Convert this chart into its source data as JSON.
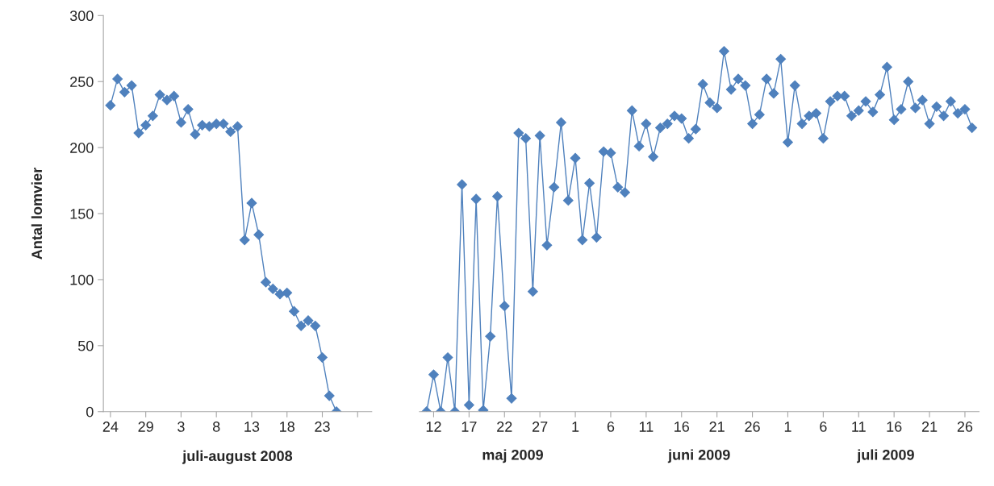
{
  "chart_data": [
    {
      "type": "line",
      "xlabel": "juli-august 2008",
      "ylabel": "Antal lomvier",
      "marker": "diamond",
      "grid": false,
      "x": [
        "2008-07-24",
        "2008-07-25",
        "2008-07-26",
        "2008-07-27",
        "2008-07-28",
        "2008-07-29",
        "2008-07-30",
        "2008-07-31",
        "2008-08-01",
        "2008-08-02",
        "2008-08-03",
        "2008-08-04",
        "2008-08-05",
        "2008-08-06",
        "2008-08-07",
        "2008-08-08",
        "2008-08-09",
        "2008-08-10",
        "2008-08-11",
        "2008-08-12",
        "2008-08-13",
        "2008-08-14",
        "2008-08-15",
        "2008-08-16",
        "2008-08-17",
        "2008-08-18",
        "2008-08-19",
        "2008-08-20",
        "2008-08-21",
        "2008-08-22",
        "2008-08-23",
        "2008-08-24",
        "2008-08-25"
      ],
      "series": [
        {
          "color": "#4f81bd",
          "values": [
            232,
            252,
            242,
            247,
            211,
            217,
            224,
            240,
            236,
            239,
            219,
            229,
            210,
            217,
            216,
            218,
            218,
            212,
            216,
            130,
            158,
            134,
            98,
            93,
            89,
            90,
            76,
            65,
            69,
            65,
            41,
            12,
            0
          ]
        }
      ],
      "xlim": [
        "2008-07-23",
        "2008-08-30"
      ],
      "xticks": [
        {
          "value": "2008-07-24",
          "label": "24"
        },
        {
          "value": "2008-07-29",
          "label": "29"
        },
        {
          "value": "2008-08-03",
          "label": "3"
        },
        {
          "value": "2008-08-08",
          "label": "8"
        },
        {
          "value": "2008-08-13",
          "label": "13"
        },
        {
          "value": "2008-08-18",
          "label": "18"
        },
        {
          "value": "2008-08-23",
          "label": "23"
        },
        {
          "value": "2008-08-28",
          "label": null
        }
      ],
      "ylim": [
        0,
        300
      ],
      "yticks": [
        0,
        50,
        100,
        150,
        200,
        250,
        300
      ]
    },
    {
      "type": "line",
      "marker": "diamond",
      "grid": false,
      "tick_labels": "x",
      "annotations": [
        "maj 2009",
        "juni 2009",
        "juli 2009"
      ],
      "x": [
        "2009-05-11",
        "2009-05-12",
        "2009-05-13",
        "2009-05-14",
        "2009-05-15",
        "2009-05-16",
        "2009-05-17",
        "2009-05-18",
        "2009-05-19",
        "2009-05-20",
        "2009-05-21",
        "2009-05-22",
        "2009-05-23",
        "2009-05-24",
        "2009-05-25",
        "2009-05-26",
        "2009-05-27",
        "2009-05-28",
        "2009-05-29",
        "2009-05-30",
        "2009-05-31",
        "2009-06-01",
        "2009-06-02",
        "2009-06-03",
        "2009-06-04",
        "2009-06-05",
        "2009-06-06",
        "2009-06-07",
        "2009-06-08",
        "2009-06-09",
        "2009-06-10",
        "2009-06-11",
        "2009-06-12",
        "2009-06-13",
        "2009-06-14",
        "2009-06-15",
        "2009-06-16",
        "2009-06-17",
        "2009-06-18",
        "2009-06-19",
        "2009-06-20",
        "2009-06-21",
        "2009-06-22",
        "2009-06-23",
        "2009-06-24",
        "2009-06-25",
        "2009-06-26",
        "2009-06-27",
        "2009-06-28",
        "2009-06-29",
        "2009-06-30",
        "2009-07-01",
        "2009-07-02",
        "2009-07-03",
        "2009-07-04",
        "2009-07-05",
        "2009-07-06",
        "2009-07-07",
        "2009-07-08",
        "2009-07-09",
        "2009-07-10",
        "2009-07-11",
        "2009-07-12",
        "2009-07-13",
        "2009-07-14",
        "2009-07-15",
        "2009-07-16",
        "2009-07-17",
        "2009-07-18",
        "2009-07-19",
        "2009-07-20",
        "2009-07-21",
        "2009-07-22",
        "2009-07-23",
        "2009-07-24",
        "2009-07-25",
        "2009-07-26",
        "2009-07-27"
      ],
      "series": [
        {
          "color": "#4f81bd",
          "values": [
            0,
            28,
            0,
            41,
            0,
            172,
            5,
            161,
            1,
            57,
            163,
            80,
            10,
            211,
            207,
            91,
            209,
            126,
            170,
            219,
            160,
            192,
            130,
            173,
            132,
            197,
            196,
            170,
            166,
            228,
            201,
            218,
            193,
            215,
            218,
            224,
            222,
            207,
            214,
            248,
            234,
            230,
            273,
            244,
            252,
            247,
            218,
            225,
            252,
            241,
            267,
            204,
            247,
            218,
            224,
            226,
            207,
            235,
            239,
            239,
            224,
            228,
            235,
            227,
            240,
            261,
            221,
            229,
            250,
            230,
            236,
            218,
            231,
            224,
            235,
            226,
            229,
            215
          ]
        }
      ],
      "xlim": [
        "2009-05-10",
        "2009-07-28"
      ],
      "xticks": [
        {
          "value": "2009-05-12",
          "label": "12"
        },
        {
          "value": "2009-05-17",
          "label": "17"
        },
        {
          "value": "2009-05-22",
          "label": "22"
        },
        {
          "value": "2009-05-27",
          "label": "27"
        },
        {
          "value": "2009-06-01",
          "label": "1"
        },
        {
          "value": "2009-06-06",
          "label": "6"
        },
        {
          "value": "2009-06-11",
          "label": "11"
        },
        {
          "value": "2009-06-16",
          "label": "16"
        },
        {
          "value": "2009-06-21",
          "label": "21"
        },
        {
          "value": "2009-06-26",
          "label": "26"
        },
        {
          "value": "2009-07-01",
          "label": "1"
        },
        {
          "value": "2009-07-06",
          "label": "6"
        },
        {
          "value": "2009-07-11",
          "label": "11"
        },
        {
          "value": "2009-07-16",
          "label": "16"
        },
        {
          "value": "2009-07-21",
          "label": "21"
        },
        {
          "value": "2009-07-26",
          "label": "26"
        }
      ],
      "ylim": [
        0,
        300
      ],
      "yticks": [
        0,
        50,
        100,
        150,
        200,
        250,
        300
      ]
    }
  ]
}
